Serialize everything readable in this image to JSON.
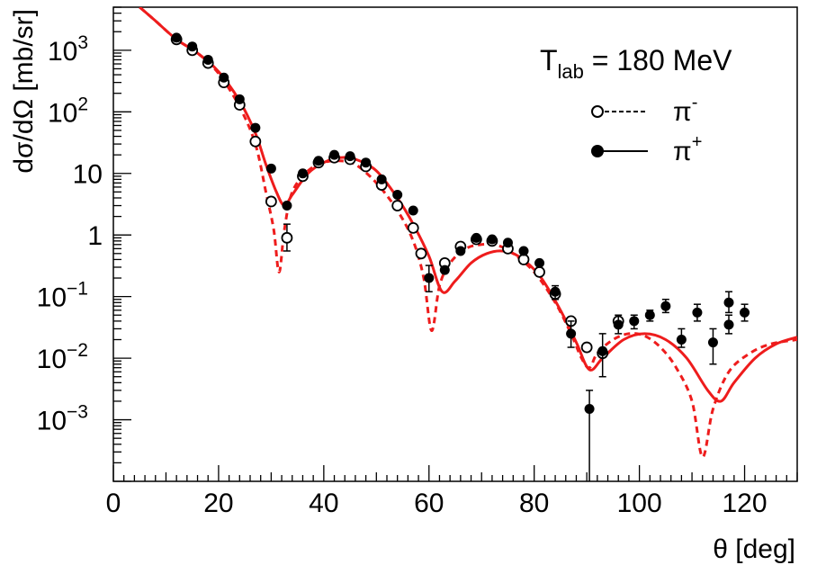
{
  "chart_data": {
    "type": "scatter",
    "title": "",
    "xlabel": "θ [deg]",
    "ylabel": "dσ/dΩ [mb/sr]",
    "xlim": [
      0,
      130
    ],
    "ylim": [
      0.0001,
      5000
    ],
    "yscale": "log",
    "x_ticks": [
      0,
      20,
      40,
      60,
      80,
      100,
      120
    ],
    "y_ticks": [
      {
        "value": 0.001,
        "base": "10",
        "exp": "−3"
      },
      {
        "value": 0.01,
        "base": "10",
        "exp": "−2"
      },
      {
        "value": 0.1,
        "base": "10",
        "exp": "−1"
      },
      {
        "value": 1,
        "base": "1",
        "exp": ""
      },
      {
        "value": 10,
        "base": "10",
        "exp": ""
      },
      {
        "value": 100,
        "base": "10",
        "exp": "2"
      },
      {
        "value": 1000,
        "base": "10",
        "exp": "3"
      }
    ],
    "annotation": {
      "prefix": "T",
      "subscript": "lab",
      "suffix": " = 180 MeV"
    },
    "legend": [
      {
        "label": "π",
        "sup": "-",
        "marker": "open-circle",
        "line": "dashed"
      },
      {
        "label": "π",
        "sup": "+",
        "marker": "filled-circle",
        "line": "solid"
      }
    ],
    "colors": {
      "theory": "#ee1c1c",
      "data": "#000000"
    },
    "series": [
      {
        "name": "π- data",
        "marker": "open-circle",
        "points": [
          {
            "x": 12.0,
            "y": 1500
          },
          {
            "x": 15.0,
            "y": 1000
          },
          {
            "x": 18.0,
            "y": 620
          },
          {
            "x": 21.0,
            "y": 300
          },
          {
            "x": 24.0,
            "y": 130
          },
          {
            "x": 27.0,
            "y": 33
          },
          {
            "x": 30.0,
            "y": 3.5
          },
          {
            "x": 33.0,
            "y": 0.9,
            "err": [
              0.55,
              1.5
            ]
          },
          {
            "x": 36.0,
            "y": 9
          },
          {
            "x": 39.0,
            "y": 15
          },
          {
            "x": 42.0,
            "y": 18
          },
          {
            "x": 45.0,
            "y": 17
          },
          {
            "x": 48.0,
            "y": 13
          },
          {
            "x": 51.0,
            "y": 6.5
          },
          {
            "x": 54.0,
            "y": 3
          },
          {
            "x": 57.0,
            "y": 1.3
          },
          {
            "x": 58.5,
            "y": 0.5
          },
          {
            "x": 63.0,
            "y": 0.35
          },
          {
            "x": 66.0,
            "y": 0.65
          },
          {
            "x": 69.0,
            "y": 0.85
          },
          {
            "x": 72.0,
            "y": 0.8
          },
          {
            "x": 75.0,
            "y": 0.6
          },
          {
            "x": 78.0,
            "y": 0.4
          },
          {
            "x": 81.0,
            "y": 0.25
          },
          {
            "x": 84.0,
            "y": 0.11
          },
          {
            "x": 87.0,
            "y": 0.04
          },
          {
            "x": 90.0,
            "y": 0.015
          },
          {
            "x": 93.0,
            "y": 0.012
          },
          {
            "x": 96.0,
            "y": 0.04
          }
        ]
      },
      {
        "name": "π+ data",
        "marker": "filled-circle",
        "points": [
          {
            "x": 12.0,
            "y": 1600
          },
          {
            "x": 15.0,
            "y": 1150
          },
          {
            "x": 18.0,
            "y": 700
          },
          {
            "x": 21.0,
            "y": 360
          },
          {
            "x": 24.0,
            "y": 160
          },
          {
            "x": 27.0,
            "y": 55
          },
          {
            "x": 30.0,
            "y": 12
          },
          {
            "x": 33.0,
            "y": 3
          },
          {
            "x": 36.0,
            "y": 10
          },
          {
            "x": 39.0,
            "y": 16
          },
          {
            "x": 42.0,
            "y": 20
          },
          {
            "x": 45.0,
            "y": 19
          },
          {
            "x": 48.0,
            "y": 15
          },
          {
            "x": 51.0,
            "y": 8
          },
          {
            "x": 54.0,
            "y": 4.5
          },
          {
            "x": 57.0,
            "y": 2.5
          },
          {
            "x": 60.0,
            "y": 0.2,
            "err": [
              0.12,
              0.32
            ]
          },
          {
            "x": 63.0,
            "y": 0.27
          },
          {
            "x": 66.0,
            "y": 0.55
          },
          {
            "x": 69.0,
            "y": 0.9
          },
          {
            "x": 72.0,
            "y": 0.85
          },
          {
            "x": 75.0,
            "y": 0.75
          },
          {
            "x": 78.0,
            "y": 0.55
          },
          {
            "x": 81.0,
            "y": 0.35
          },
          {
            "x": 84.0,
            "y": 0.12,
            "err": [
              0.09,
              0.15
            ]
          },
          {
            "x": 87.0,
            "y": 0.025,
            "err": [
              0.015,
              0.04
            ]
          },
          {
            "x": 90.5,
            "y": 0.0015,
            "err": [
              5e-05,
              0.003
            ]
          },
          {
            "x": 93.0,
            "y": 0.013,
            "err": [
              0.005,
              0.025
            ]
          },
          {
            "x": 96.0,
            "y": 0.035,
            "err": [
              0.025,
              0.05
            ]
          },
          {
            "x": 99.0,
            "y": 0.04,
            "err": [
              0.03,
              0.05
            ]
          },
          {
            "x": 102.0,
            "y": 0.05,
            "err": [
              0.04,
              0.06
            ]
          },
          {
            "x": 105.0,
            "y": 0.07,
            "err": [
              0.055,
              0.09
            ]
          },
          {
            "x": 108.0,
            "y": 0.02,
            "err": [
              0.015,
              0.03
            ]
          },
          {
            "x": 111.0,
            "y": 0.055,
            "err": [
              0.04,
              0.075
            ]
          },
          {
            "x": 114.0,
            "y": 0.018,
            "err": [
              0.008,
              0.03
            ]
          },
          {
            "x": 117.0,
            "y": 0.08,
            "err": [
              0.055,
              0.12
            ]
          },
          {
            "x": 117.0,
            "y": 0.035,
            "err": [
              0.025,
              0.05
            ]
          },
          {
            "x": 120.0,
            "y": 0.055,
            "err": [
              0.04,
              0.075
            ]
          }
        ]
      },
      {
        "name": "π- theory",
        "line": "dashed",
        "points": [
          {
            "x": 5,
            "y": 5000
          },
          {
            "x": 8,
            "y": 3000
          },
          {
            "x": 12,
            "y": 1500
          },
          {
            "x": 16,
            "y": 900
          },
          {
            "x": 20,
            "y": 420
          },
          {
            "x": 24,
            "y": 120
          },
          {
            "x": 27,
            "y": 30
          },
          {
            "x": 29,
            "y": 5
          },
          {
            "x": 30.5,
            "y": 1.2
          },
          {
            "x": 31.5,
            "y": 0.25
          },
          {
            "x": 32.5,
            "y": 1.2
          },
          {
            "x": 34,
            "y": 5
          },
          {
            "x": 37,
            "y": 11
          },
          {
            "x": 40,
            "y": 15
          },
          {
            "x": 43,
            "y": 16
          },
          {
            "x": 46,
            "y": 14
          },
          {
            "x": 50,
            "y": 7
          },
          {
            "x": 54,
            "y": 2.5
          },
          {
            "x": 57,
            "y": 0.8
          },
          {
            "x": 59,
            "y": 0.2
          },
          {
            "x": 60.5,
            "y": 0.028
          },
          {
            "x": 62,
            "y": 0.15
          },
          {
            "x": 64,
            "y": 0.35
          },
          {
            "x": 67,
            "y": 0.6
          },
          {
            "x": 70,
            "y": 0.7
          },
          {
            "x": 73,
            "y": 0.68
          },
          {
            "x": 76,
            "y": 0.5
          },
          {
            "x": 80,
            "y": 0.25
          },
          {
            "x": 84,
            "y": 0.08
          },
          {
            "x": 87,
            "y": 0.025
          },
          {
            "x": 89,
            "y": 0.01
          },
          {
            "x": 90.5,
            "y": 0.007
          },
          {
            "x": 92,
            "y": 0.012
          },
          {
            "x": 95,
            "y": 0.02
          },
          {
            "x": 98,
            "y": 0.025
          },
          {
            "x": 101,
            "y": 0.023
          },
          {
            "x": 104,
            "y": 0.015
          },
          {
            "x": 107,
            "y": 0.007
          },
          {
            "x": 110,
            "y": 0.002
          },
          {
            "x": 112,
            "y": 0.00025
          },
          {
            "x": 114,
            "y": 0.0015
          },
          {
            "x": 117,
            "y": 0.006
          },
          {
            "x": 121,
            "y": 0.012
          },
          {
            "x": 125,
            "y": 0.017
          },
          {
            "x": 130,
            "y": 0.02
          }
        ]
      },
      {
        "name": "π+ theory",
        "line": "solid",
        "points": [
          {
            "x": 5,
            "y": 5000
          },
          {
            "x": 8,
            "y": 3000
          },
          {
            "x": 12,
            "y": 1500
          },
          {
            "x": 16,
            "y": 900
          },
          {
            "x": 20,
            "y": 450
          },
          {
            "x": 24,
            "y": 150
          },
          {
            "x": 27,
            "y": 45
          },
          {
            "x": 29,
            "y": 14
          },
          {
            "x": 31,
            "y": 5
          },
          {
            "x": 32.5,
            "y": 3
          },
          {
            "x": 34,
            "y": 4.5
          },
          {
            "x": 37,
            "y": 10
          },
          {
            "x": 40,
            "y": 15
          },
          {
            "x": 43,
            "y": 18
          },
          {
            "x": 46,
            "y": 17
          },
          {
            "x": 50,
            "y": 11
          },
          {
            "x": 54,
            "y": 4
          },
          {
            "x": 57,
            "y": 1.5
          },
          {
            "x": 60,
            "y": 0.45
          },
          {
            "x": 62.5,
            "y": 0.12
          },
          {
            "x": 65,
            "y": 0.18
          },
          {
            "x": 68,
            "y": 0.35
          },
          {
            "x": 71,
            "y": 0.5
          },
          {
            "x": 74,
            "y": 0.55
          },
          {
            "x": 77,
            "y": 0.45
          },
          {
            "x": 81,
            "y": 0.22
          },
          {
            "x": 85,
            "y": 0.06
          },
          {
            "x": 88,
            "y": 0.018
          },
          {
            "x": 90.5,
            "y": 0.0065
          },
          {
            "x": 93,
            "y": 0.01
          },
          {
            "x": 97,
            "y": 0.02
          },
          {
            "x": 101,
            "y": 0.025
          },
          {
            "x": 105,
            "y": 0.02
          },
          {
            "x": 109,
            "y": 0.01
          },
          {
            "x": 113,
            "y": 0.003
          },
          {
            "x": 115.5,
            "y": 0.002
          },
          {
            "x": 118,
            "y": 0.004
          },
          {
            "x": 122,
            "y": 0.01
          },
          {
            "x": 126,
            "y": 0.017
          },
          {
            "x": 130,
            "y": 0.022
          }
        ]
      }
    ]
  }
}
